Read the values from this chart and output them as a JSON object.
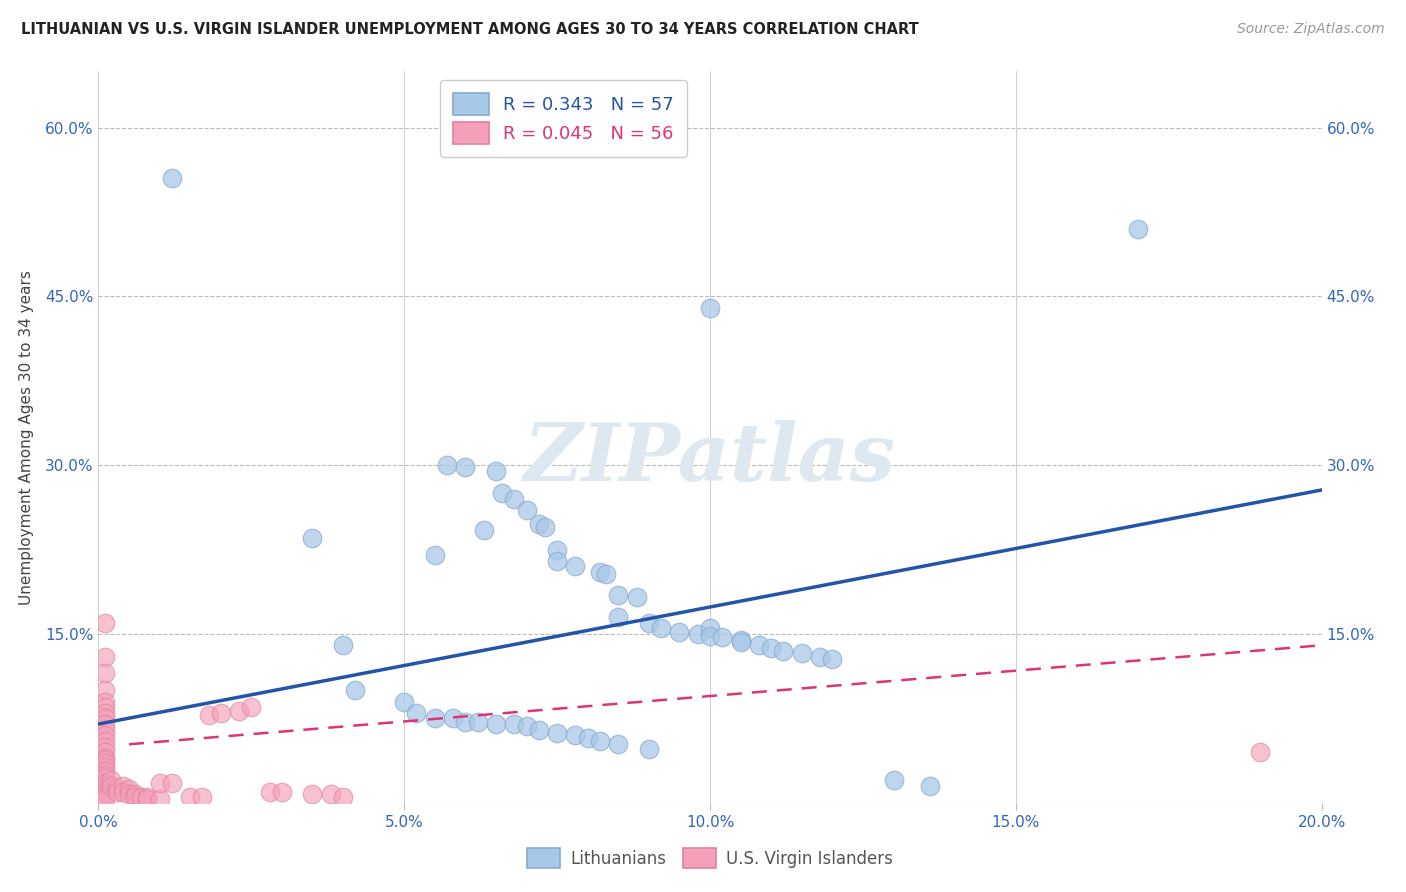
{
  "title": "LITHUANIAN VS U.S. VIRGIN ISLANDER UNEMPLOYMENT AMONG AGES 30 TO 34 YEARS CORRELATION CHART",
  "source": "Source: ZipAtlas.com",
  "ylabel": "Unemployment Among Ages 30 to 34 years",
  "xlim": [
    0.0,
    0.2
  ],
  "ylim": [
    0.0,
    0.65
  ],
  "xticks": [
    0.0,
    0.05,
    0.1,
    0.15,
    0.2
  ],
  "xtick_labels": [
    "0.0%",
    "5.0%",
    "10.0%",
    "15.0%",
    "20.0%"
  ],
  "yticks": [
    0.0,
    0.15,
    0.3,
    0.45,
    0.6
  ],
  "ytick_labels": [
    "",
    "15.0%",
    "30.0%",
    "45.0%",
    "60.0%"
  ],
  "legend1_R": "0.343",
  "legend1_N": "57",
  "legend2_R": "0.045",
  "legend2_N": "56",
  "blue_color": "#a8c8e8",
  "blue_edge_color": "#88aacc",
  "pink_color": "#f4a0b8",
  "pink_edge_color": "#e080a0",
  "blue_line_color": "#2255aa",
  "pink_line_color": "#dd3377",
  "watermark": "ZIPatlas",
  "watermark_color": "#dde8f0",
  "background_color": "#ffffff",
  "grid_color": "#bbbbbb",
  "title_color": "#222222",
  "axis_label_color": "#444444",
  "tick_color": "#3366bb",
  "blue_scatter": [
    [
      0.012,
      0.555
    ],
    [
      0.035,
      0.235
    ],
    [
      0.057,
      0.3
    ],
    [
      0.06,
      0.298
    ],
    [
      0.065,
      0.295
    ],
    [
      0.066,
      0.275
    ],
    [
      0.068,
      0.27
    ],
    [
      0.07,
      0.26
    ],
    [
      0.072,
      0.248
    ],
    [
      0.073,
      0.245
    ],
    [
      0.075,
      0.225
    ],
    [
      0.063,
      0.242
    ],
    [
      0.055,
      0.22
    ],
    [
      0.075,
      0.215
    ],
    [
      0.078,
      0.21
    ],
    [
      0.082,
      0.205
    ],
    [
      0.083,
      0.203
    ],
    [
      0.085,
      0.185
    ],
    [
      0.088,
      0.183
    ],
    [
      0.085,
      0.165
    ],
    [
      0.09,
      0.16
    ],
    [
      0.092,
      0.155
    ],
    [
      0.095,
      0.152
    ],
    [
      0.098,
      0.15
    ],
    [
      0.1,
      0.155
    ],
    [
      0.1,
      0.148
    ],
    [
      0.102,
      0.147
    ],
    [
      0.105,
      0.145
    ],
    [
      0.105,
      0.143
    ],
    [
      0.108,
      0.14
    ],
    [
      0.11,
      0.138
    ],
    [
      0.112,
      0.135
    ],
    [
      0.115,
      0.133
    ],
    [
      0.118,
      0.13
    ],
    [
      0.12,
      0.128
    ],
    [
      0.04,
      0.14
    ],
    [
      0.042,
      0.1
    ],
    [
      0.05,
      0.09
    ],
    [
      0.052,
      0.08
    ],
    [
      0.055,
      0.075
    ],
    [
      0.058,
      0.075
    ],
    [
      0.06,
      0.072
    ],
    [
      0.062,
      0.072
    ],
    [
      0.065,
      0.07
    ],
    [
      0.068,
      0.07
    ],
    [
      0.07,
      0.068
    ],
    [
      0.072,
      0.065
    ],
    [
      0.075,
      0.062
    ],
    [
      0.078,
      0.06
    ],
    [
      0.08,
      0.058
    ],
    [
      0.082,
      0.055
    ],
    [
      0.085,
      0.052
    ],
    [
      0.09,
      0.048
    ],
    [
      0.1,
      0.44
    ],
    [
      0.13,
      0.02
    ],
    [
      0.136,
      0.015
    ],
    [
      0.17,
      0.51
    ]
  ],
  "pink_scatter": [
    [
      0.001,
      0.16
    ],
    [
      0.001,
      0.13
    ],
    [
      0.001,
      0.115
    ],
    [
      0.001,
      0.1
    ],
    [
      0.001,
      0.09
    ],
    [
      0.001,
      0.085
    ],
    [
      0.001,
      0.08
    ],
    [
      0.001,
      0.075
    ],
    [
      0.001,
      0.07
    ],
    [
      0.001,
      0.065
    ],
    [
      0.001,
      0.06
    ],
    [
      0.001,
      0.055
    ],
    [
      0.001,
      0.05
    ],
    [
      0.001,
      0.045
    ],
    [
      0.001,
      0.04
    ],
    [
      0.001,
      0.038
    ],
    [
      0.001,
      0.035
    ],
    [
      0.001,
      0.032
    ],
    [
      0.001,
      0.028
    ],
    [
      0.001,
      0.025
    ],
    [
      0.001,
      0.022
    ],
    [
      0.001,
      0.018
    ],
    [
      0.001,
      0.015
    ],
    [
      0.001,
      0.012
    ],
    [
      0.001,
      0.01
    ],
    [
      0.001,
      0.008
    ],
    [
      0.001,
      0.005
    ],
    [
      0.001,
      0.003
    ],
    [
      0.002,
      0.02
    ],
    [
      0.002,
      0.015
    ],
    [
      0.003,
      0.013
    ],
    [
      0.003,
      0.01
    ],
    [
      0.004,
      0.015
    ],
    [
      0.004,
      0.01
    ],
    [
      0.005,
      0.012
    ],
    [
      0.005,
      0.008
    ],
    [
      0.006,
      0.008
    ],
    [
      0.006,
      0.005
    ],
    [
      0.007,
      0.005
    ],
    [
      0.008,
      0.005
    ],
    [
      0.008,
      0.003
    ],
    [
      0.01,
      0.003
    ],
    [
      0.01,
      0.018
    ],
    [
      0.012,
      0.018
    ],
    [
      0.015,
      0.005
    ],
    [
      0.017,
      0.005
    ],
    [
      0.018,
      0.078
    ],
    [
      0.02,
      0.08
    ],
    [
      0.023,
      0.082
    ],
    [
      0.025,
      0.085
    ],
    [
      0.028,
      0.01
    ],
    [
      0.03,
      0.01
    ],
    [
      0.035,
      0.008
    ],
    [
      0.038,
      0.008
    ],
    [
      0.04,
      0.005
    ],
    [
      0.19,
      0.045
    ]
  ],
  "blue_line_x": [
    0.0,
    0.2
  ],
  "blue_line_y": [
    0.07,
    0.278
  ],
  "pink_line_x": [
    0.005,
    0.2
  ],
  "pink_line_y": [
    0.052,
    0.14
  ],
  "scatter_size": 180,
  "scatter_alpha_blue": 0.75,
  "scatter_alpha_pink": 0.65
}
